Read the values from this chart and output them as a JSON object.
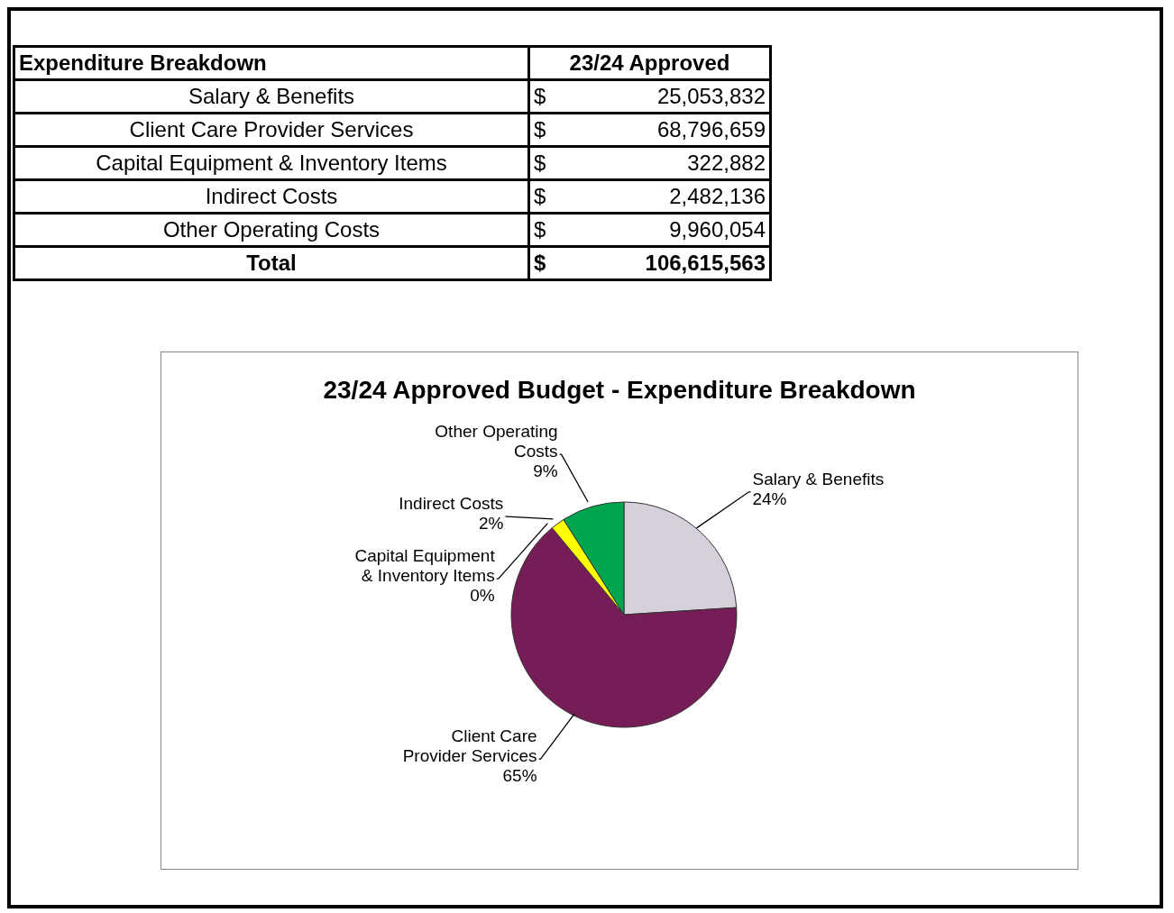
{
  "chart_data": [
    {
      "type": "other",
      "categories": [
        "Salary & Benefits",
        "Client Care Provider Services",
        "Capital Equipment & Inventory Items",
        "Indirect Costs",
        "Other Operating Costs"
      ],
      "value_labels": [
        "25,053,832",
        "68,796,659",
        "322,882",
        "2,482,136",
        "9,960,054"
      ],
      "annotations": [
        "Expenditure Breakdown",
        "23/24 Approved",
        "$",
        "Total"
      ],
      "totals": [
        "106,615,563"
      ]
    },
    {
      "type": "pie",
      "title": "23/24 Approved Budget - Expenditure Breakdown",
      "categories": [
        "Salary & Benefits",
        "Client Care Provider Services",
        "Capital Equipment & Inventory Items",
        "Indirect Costs",
        "Other Operating Costs"
      ],
      "values": [
        24,
        65,
        0,
        2,
        9
      ],
      "colors": [
        "#d6d0dc",
        "#761c56",
        "#9999ff",
        "#ffff00",
        "#00a54f"
      ],
      "value_labels": [
        "24%",
        "65%",
        "0%",
        "2%",
        "9%"
      ],
      "legend": false
    }
  ]
}
